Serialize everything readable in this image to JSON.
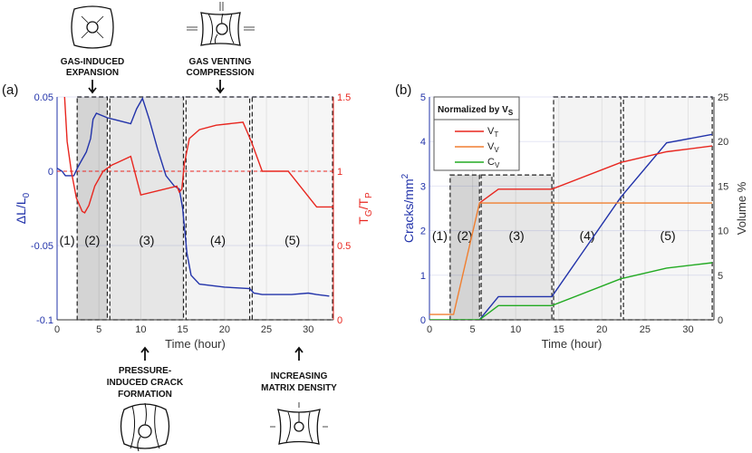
{
  "annotations": {
    "top_left": [
      "GAS-INDUCED",
      "EXPANSION"
    ],
    "top_right": [
      "GAS VENTING",
      "COMPRESSION"
    ],
    "bottom_left": [
      "PRESSURE-",
      "INDUCED CRACK",
      "FORMATION"
    ],
    "bottom_right": [
      "INCREASING",
      "MATRIX DENSITY"
    ]
  },
  "chart_data": [
    {
      "panel_label": "(a)",
      "type": "line",
      "xlabel": "Time (hour)",
      "ylabel_left": "ΔL/L",
      "ylabel_left_sub": "0",
      "ylabel_right": "T",
      "ylabel_right_sub1": "G",
      "ylabel_right_mid": "/T",
      "ylabel_right_sub2": "P",
      "xlim": [
        0,
        33
      ],
      "ylim_left": [
        -0.1,
        0.05
      ],
      "ylim_right": [
        0,
        1.5
      ],
      "xticks": [
        "0",
        "5",
        "10",
        "15",
        "20",
        "25",
        "30"
      ],
      "yticks_left": [
        "-0.1",
        "-0.05",
        "0",
        "0.05"
      ],
      "yticks_right": [
        "0",
        "0.5",
        "1",
        "1.5"
      ],
      "grid": true,
      "colors": {
        "left": "#2233aa",
        "right": "#e8261f"
      },
      "reference_line_right": 1,
      "regions": [
        {
          "label": "(1)",
          "from": 0,
          "to": 2.4,
          "shade": "none"
        },
        {
          "label": "(2)",
          "from": 2.4,
          "to": 6.0,
          "shade": "#d4d4d4"
        },
        {
          "label": "(3)",
          "from": 6.3,
          "to": 15.1,
          "shade": "#e6e6e6"
        },
        {
          "label": "(4)",
          "from": 15.4,
          "to": 23.0,
          "shade": "#f3f3f3"
        },
        {
          "label": "(5)",
          "from": 23.3,
          "to": 32.9,
          "shade": "#f6f6f6"
        }
      ],
      "series": [
        {
          "axis": "left",
          "color": "#2233aa",
          "x": [
            0,
            0.6,
            1,
            2,
            2.5,
            3,
            3.5,
            4,
            4.3,
            4.7,
            6,
            8.8,
            9.5,
            10.2,
            11,
            12,
            13,
            14,
            14.6,
            15,
            15.5,
            16,
            17,
            20,
            23,
            23.5,
            24.5,
            28,
            30,
            31,
            32.5
          ],
          "y": [
            0.002,
            0,
            -0.003,
            -0.003,
            0.003,
            0.008,
            0.013,
            0.022,
            0.035,
            0.039,
            0.036,
            0.032,
            0.042,
            0.049,
            0.035,
            0.015,
            -0.003,
            -0.01,
            -0.012,
            -0.025,
            -0.055,
            -0.07,
            -0.076,
            -0.078,
            -0.079,
            -0.082,
            -0.083,
            -0.083,
            -0.082,
            -0.083,
            -0.084
          ]
        },
        {
          "axis": "right",
          "color": "#e8261f",
          "x": [
            0.9,
            1.2,
            1.7,
            2.3,
            3,
            3.3,
            3.8,
            4.5,
            5.5,
            6.5,
            8.8,
            10,
            14.3,
            14.6,
            14.9,
            15.2,
            15.8,
            17,
            19,
            22.2,
            23.2,
            24.5,
            27.6,
            31,
            33
          ],
          "y": [
            1.5,
            1.2,
            1.0,
            0.82,
            0.73,
            0.72,
            0.77,
            0.9,
            1.0,
            1.04,
            1.1,
            0.84,
            0.9,
            0.86,
            0.88,
            1.05,
            1.22,
            1.28,
            1.31,
            1.33,
            1.2,
            1.0,
            1.0,
            0.76,
            0.76
          ]
        }
      ]
    },
    {
      "panel_label": "(b)",
      "type": "line",
      "xlabel": "Time (hour)",
      "ylabel_left": "Cracks/mm",
      "ylabel_left_sup": "2",
      "ylabel_right": "Volume %",
      "xlim": [
        0,
        33
      ],
      "ylim_left": [
        0,
        5
      ],
      "ylim_right": [
        0,
        25
      ],
      "xticks": [
        "0",
        "5",
        "10",
        "15",
        "20",
        "25",
        "30"
      ],
      "yticks_left": [
        "0",
        "1",
        "2",
        "3",
        "4",
        "5"
      ],
      "yticks_right": [
        "0",
        "5",
        "10",
        "15",
        "20",
        "25"
      ],
      "grid": true,
      "legend": {
        "title": "Normalized by V",
        "title_sub": "S",
        "placement": "top-left",
        "entries": [
          {
            "label": "V",
            "sub": "T",
            "color": "#e8261f"
          },
          {
            "label": "V",
            "sub": "V",
            "color": "#f07f30"
          },
          {
            "label": "C",
            "sub": "V",
            "color": "#22aa22"
          }
        ]
      },
      "regions": [
        {
          "label": "(1)",
          "from": 0,
          "to": 2.4,
          "top": 3.25,
          "shade": "none"
        },
        {
          "label": "(2)",
          "from": 2.4,
          "to": 5.8,
          "top": 3.25,
          "shade": "#d4d4d4"
        },
        {
          "label": "(3)",
          "from": 6.0,
          "to": 14.2,
          "top": 3.25,
          "shade": "#e6e6e6"
        },
        {
          "label": "(4)",
          "from": 14.4,
          "to": 22.2,
          "top": 5,
          "shade": "#f3f3f3"
        },
        {
          "label": "(5)",
          "from": 22.5,
          "to": 32.8,
          "top": 5,
          "shade": "#f6f6f6"
        }
      ],
      "series": [
        {
          "axis": "left",
          "color": "#2233aa",
          "x": [
            5.8,
            8,
            14.2,
            22.2,
            27.5,
            32.8
          ],
          "y": [
            0,
            0.52,
            0.52,
            2.75,
            3.97,
            4.16
          ]
        },
        {
          "axis": "right",
          "name": "V_T",
          "color": "#e8261f",
          "x": [
            5.8,
            8,
            14.2,
            22.2,
            27.5,
            32.8
          ],
          "y": [
            13.1,
            14.65,
            14.65,
            17.65,
            18.85,
            19.5
          ]
        },
        {
          "axis": "right",
          "name": "V_V",
          "color": "#f07f30",
          "x": [
            0,
            2.8,
            5.8,
            32.8
          ],
          "y": [
            0.6,
            0.6,
            13.1,
            13.1
          ]
        },
        {
          "axis": "right",
          "name": "C_V",
          "color": "#22aa22",
          "x": [
            0,
            5.8,
            8,
            14.2,
            22.2,
            27.5,
            32.8
          ],
          "y": [
            0,
            0,
            1.6,
            1.6,
            4.6,
            5.8,
            6.4
          ]
        }
      ]
    }
  ]
}
